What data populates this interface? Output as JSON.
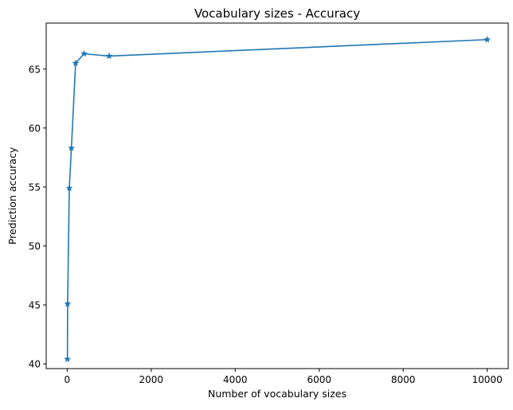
{
  "chart_data": {
    "type": "line",
    "title": "Vocabulary sizes - Accuracy",
    "xlabel": "Number of vocabulary sizes",
    "ylabel": "Prediction accuracy",
    "xlim": [
      -500,
      10500
    ],
    "ylim": [
      39.6,
      68.9
    ],
    "xticks": [
      0,
      2000,
      4000,
      6000,
      8000,
      10000
    ],
    "yticks": [
      40,
      45,
      50,
      55,
      60,
      65
    ],
    "grid": false,
    "marker": "star",
    "series": [
      {
        "color": "#1f77b4",
        "x": [
          5,
          10,
          50,
          100,
          200,
          400,
          1000,
          10000
        ],
        "y": [
          40.4,
          45.1,
          54.9,
          58.3,
          65.5,
          66.3,
          66.1,
          67.5
        ]
      }
    ]
  }
}
